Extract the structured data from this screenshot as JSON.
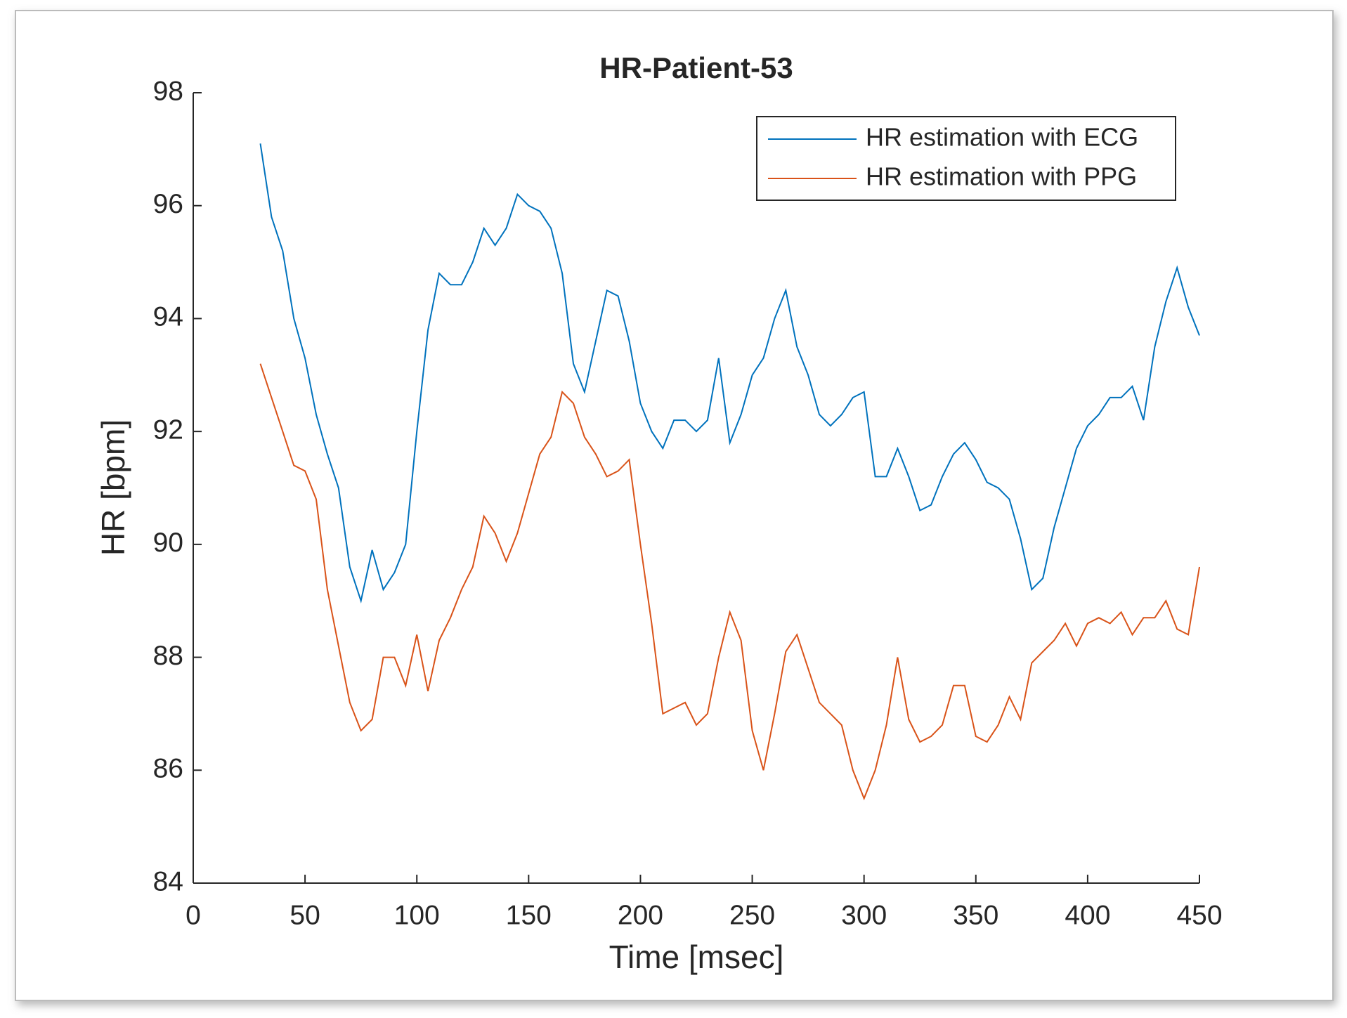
{
  "chart_data": {
    "type": "line",
    "title": "HR-Patient-53",
    "x_label": "Time [msec]",
    "y_label": "HR [bpm]",
    "x": [
      30,
      35,
      40,
      45,
      50,
      55,
      60,
      65,
      70,
      75,
      80,
      85,
      90,
      95,
      100,
      105,
      110,
      115,
      120,
      125,
      130,
      135,
      140,
      145,
      150,
      155,
      160,
      165,
      170,
      175,
      180,
      185,
      190,
      195,
      200,
      205,
      210,
      215,
      220,
      225,
      230,
      235,
      240,
      245,
      250,
      255,
      260,
      265,
      270,
      275,
      280,
      285,
      290,
      295,
      300,
      305,
      310,
      315,
      320,
      325,
      330,
      335,
      340,
      345,
      350,
      355,
      360,
      365,
      370,
      375,
      380,
      385,
      390,
      395,
      400,
      405,
      410,
      415,
      420,
      425,
      430,
      435,
      440,
      445,
      450
    ],
    "series": [
      {
        "name": "HR estimation with ECG",
        "color": "#0072bd",
        "values": [
          97.1,
          95.8,
          95.2,
          94.0,
          93.3,
          92.3,
          91.6,
          91.0,
          89.6,
          89.0,
          89.9,
          89.2,
          89.5,
          90.0,
          92.0,
          93.8,
          94.8,
          94.6,
          94.6,
          95.0,
          95.6,
          95.3,
          95.6,
          96.2,
          96.0,
          95.9,
          95.6,
          94.8,
          93.2,
          92.7,
          93.6,
          94.5,
          94.4,
          93.6,
          92.5,
          92.0,
          91.7,
          92.2,
          92.2,
          92.0,
          92.2,
          93.3,
          91.8,
          92.3,
          93.0,
          93.3,
          94.0,
          94.5,
          93.5,
          93.0,
          92.3,
          92.1,
          92.3,
          92.6,
          92.7,
          91.2,
          91.2,
          91.7,
          91.2,
          90.6,
          90.7,
          91.2,
          91.6,
          91.8,
          91.5,
          91.1,
          91.0,
          90.8,
          90.1,
          89.2,
          89.4,
          90.3,
          91.0,
          91.7,
          92.1,
          92.3,
          92.6,
          92.6,
          92.8,
          92.2,
          93.5,
          94.3,
          94.9,
          94.2,
          93.7
        ]
      },
      {
        "name": "HR estimation with PPG",
        "color": "#d95319",
        "values": [
          93.2,
          92.6,
          92.0,
          91.4,
          91.3,
          90.8,
          89.2,
          88.2,
          87.2,
          86.7,
          86.9,
          88.0,
          88.0,
          87.5,
          88.4,
          87.4,
          88.3,
          88.7,
          89.2,
          89.6,
          90.5,
          90.2,
          89.7,
          90.2,
          90.9,
          91.6,
          91.9,
          92.7,
          92.5,
          91.9,
          91.6,
          91.2,
          91.3,
          91.5,
          90.0,
          88.6,
          87.0,
          87.1,
          87.2,
          86.8,
          87.0,
          88.0,
          88.8,
          88.3,
          86.7,
          86.0,
          87.0,
          88.1,
          88.4,
          87.8,
          87.2,
          87.0,
          86.8,
          86.0,
          85.5,
          86.0,
          86.8,
          88.0,
          86.9,
          86.5,
          86.6,
          86.8,
          87.5,
          87.5,
          86.6,
          86.5,
          86.8,
          87.3,
          86.9,
          87.9,
          88.1,
          88.3,
          88.6,
          88.2,
          88.6,
          88.7,
          88.6,
          88.8,
          88.4,
          88.7,
          88.7,
          89.0,
          88.5,
          88.4,
          89.6
        ]
      }
    ],
    "xlim": [
      0,
      450
    ],
    "xticks": [
      0,
      50,
      100,
      150,
      200,
      250,
      300,
      350,
      400,
      450
    ],
    "ylim": [
      84,
      98
    ],
    "yticks": [
      84,
      86,
      88,
      90,
      92,
      94,
      96,
      98
    ],
    "legend": "northeast"
  }
}
